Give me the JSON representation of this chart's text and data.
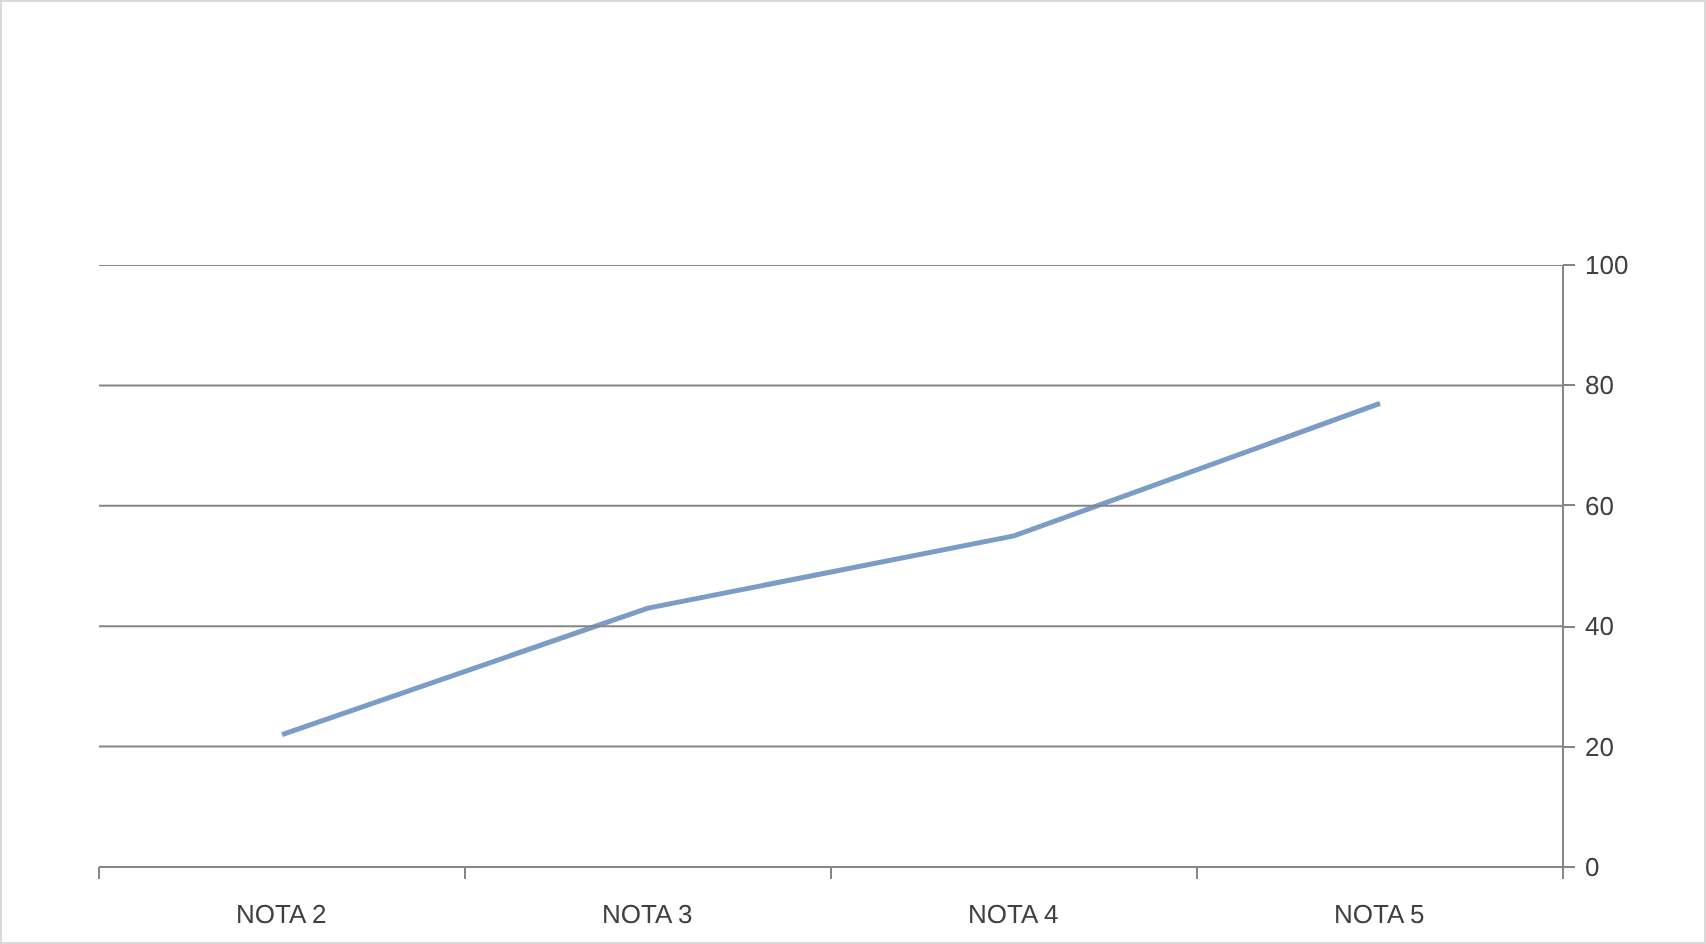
{
  "chart_data": {
    "type": "line",
    "categories": [
      "NOTA 2",
      "NOTA 3",
      "NOTA 4",
      "NOTA 5"
    ],
    "series": [
      {
        "color": "#7a9cc6",
        "values": [
          22,
          43,
          55,
          77
        ]
      }
    ],
    "ylim": [
      0,
      100
    ],
    "yticks": [
      0,
      20,
      40,
      60,
      80,
      100
    ],
    "grid": "y",
    "marker": "none",
    "line_style": "solid"
  }
}
